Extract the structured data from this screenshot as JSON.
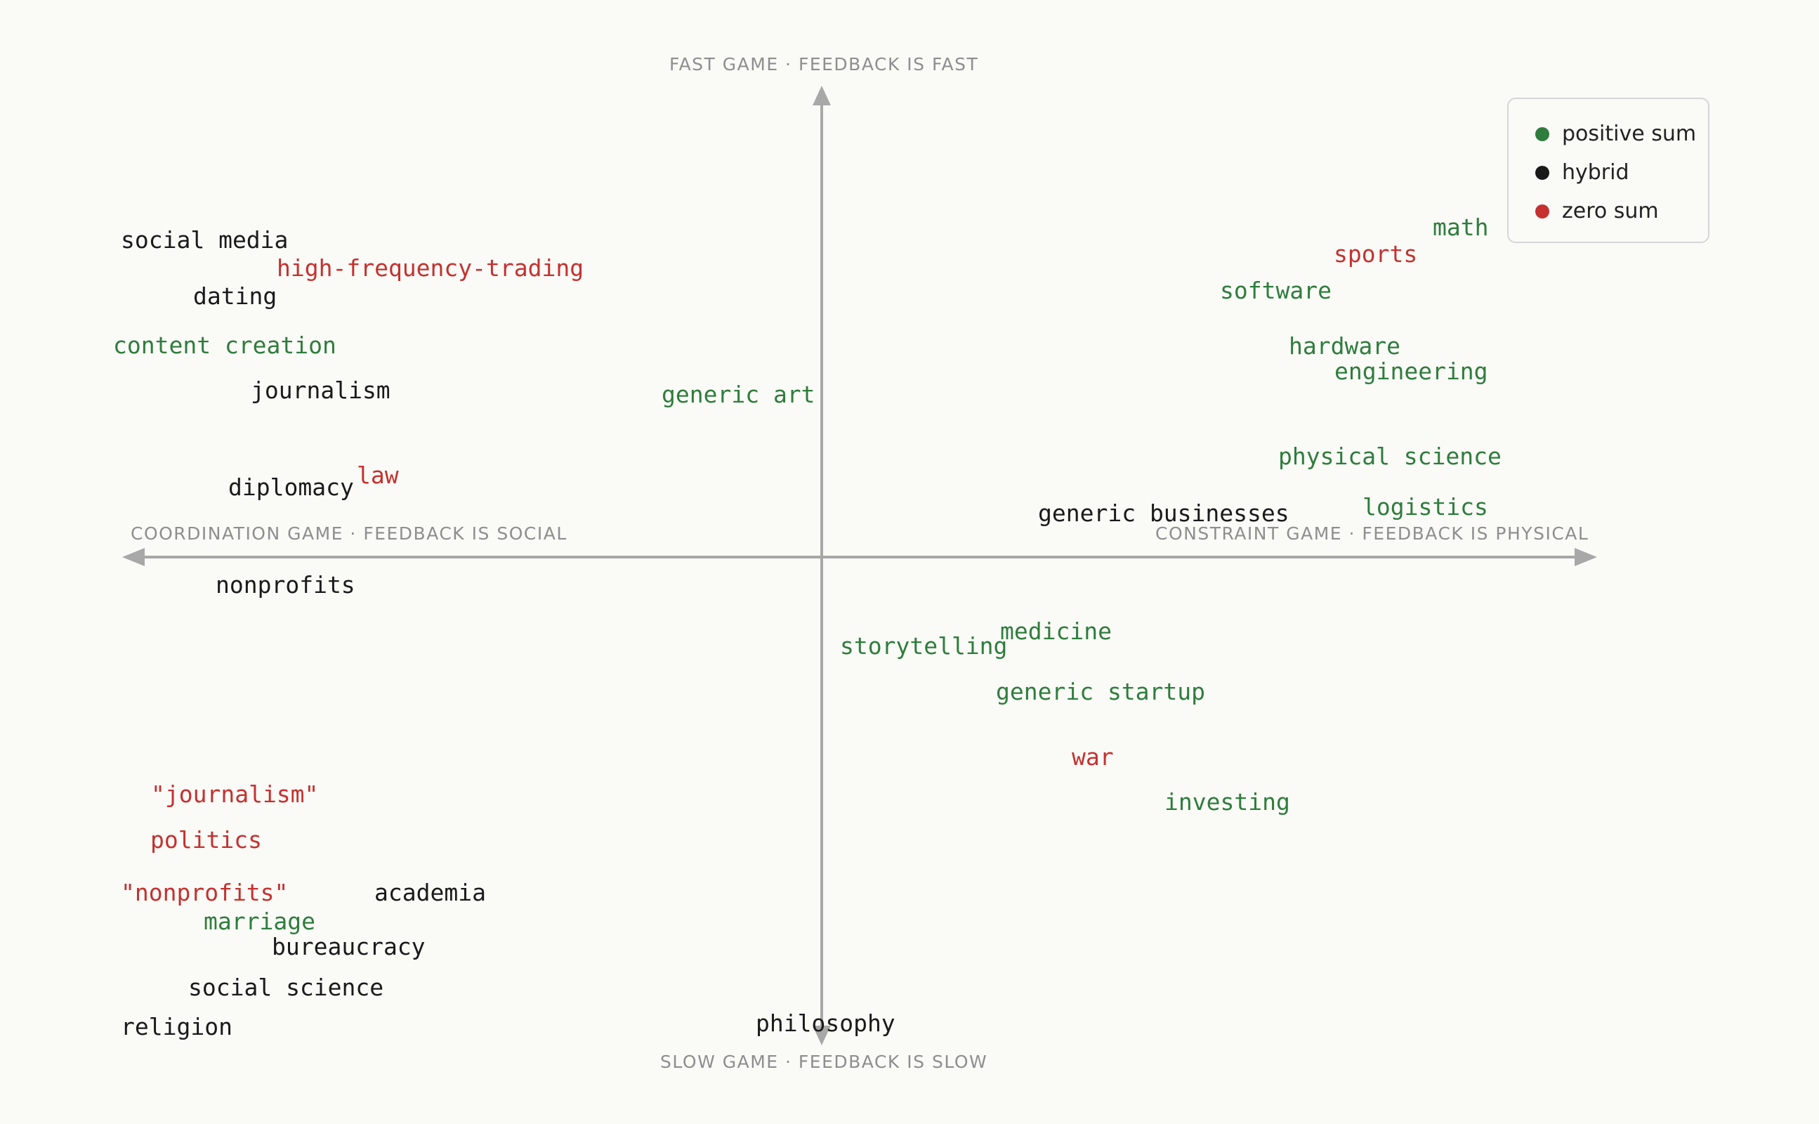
{
  "axes": {
    "top": "FAST GAME · FEEDBACK IS FAST",
    "bottom": "SLOW GAME · FEEDBACK IS SLOW",
    "left": "COORDINATION GAME · FEEDBACK IS SOCIAL",
    "right": "CONSTRAINT GAME · FEEDBACK IS PHYSICAL"
  },
  "legend": [
    {
      "key": "positive",
      "label": "positive sum",
      "color": "#2e7d3c"
    },
    {
      "key": "hybrid",
      "label": "hybrid",
      "color": "#1a1a1a"
    },
    {
      "key": "zero",
      "label": "zero sum",
      "color": "#c4312f"
    }
  ],
  "items": [
    {
      "label": "social media",
      "category": "hybrid"
    },
    {
      "label": "high-frequency-trading",
      "category": "zero"
    },
    {
      "label": "dating",
      "category": "hybrid"
    },
    {
      "label": "content creation",
      "category": "positive"
    },
    {
      "label": "journalism",
      "category": "hybrid"
    },
    {
      "label": "generic art",
      "category": "positive"
    },
    {
      "label": "diplomacy",
      "category": "hybrid"
    },
    {
      "label": "law",
      "category": "zero"
    },
    {
      "label": "nonprofits",
      "category": "hybrid"
    },
    {
      "label": "math",
      "category": "positive"
    },
    {
      "label": "sports",
      "category": "zero"
    },
    {
      "label": "software",
      "category": "positive"
    },
    {
      "label": "hardware",
      "category": "positive"
    },
    {
      "label": "engineering",
      "category": "positive"
    },
    {
      "label": "physical science",
      "category": "positive"
    },
    {
      "label": "generic businesses",
      "category": "hybrid"
    },
    {
      "label": "logistics",
      "category": "positive"
    },
    {
      "label": "storytelling",
      "category": "positive"
    },
    {
      "label": "medicine",
      "category": "positive"
    },
    {
      "label": "generic startup",
      "category": "positive"
    },
    {
      "label": "war",
      "category": "zero"
    },
    {
      "label": "investing",
      "category": "positive"
    },
    {
      "label": "\"journalism\"",
      "category": "zero"
    },
    {
      "label": "politics",
      "category": "zero"
    },
    {
      "label": "\"nonprofits\"",
      "category": "zero"
    },
    {
      "label": "academia",
      "category": "hybrid"
    },
    {
      "label": "marriage",
      "category": "positive"
    },
    {
      "label": "bureaucracy",
      "category": "hybrid"
    },
    {
      "label": "social science",
      "category": "hybrid"
    },
    {
      "label": "religion",
      "category": "hybrid"
    },
    {
      "label": "philosophy",
      "category": "hybrid"
    }
  ]
}
